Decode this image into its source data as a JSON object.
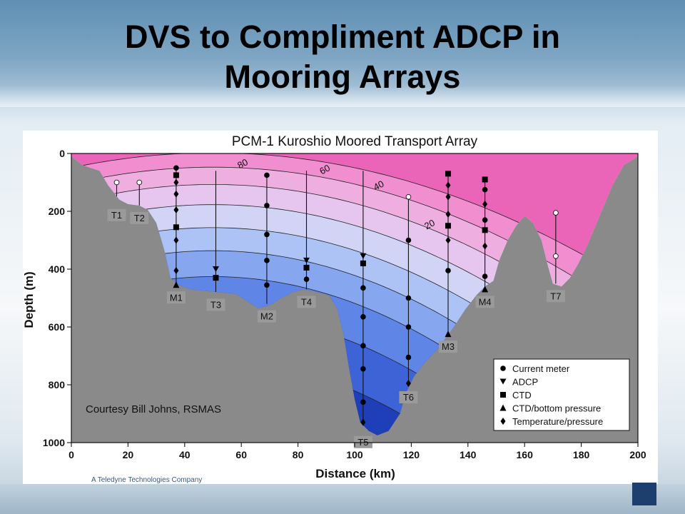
{
  "slide": {
    "title_line1": "DVS to Compliment ADCP in",
    "title_line2": "Mooring Arrays",
    "courtesy": "Courtesy Bill Johns, RSMAS",
    "company_tagline": "A Teledyne Technologies Company"
  },
  "colors": {
    "seafloor": "#8a8a8a",
    "band_fill": [
      "#1f3fb8",
      "#3d63d6",
      "#5f86e6",
      "#86a6ef",
      "#adc3f5",
      "#d2d4f6",
      "#e6c6ee",
      "#efaee0",
      "#f08ed0",
      "#ea64b8"
    ],
    "contour": "#222222"
  },
  "chart_data": {
    "type": "area",
    "title": "PCM-1 Kuroshio Moored Transport Array",
    "xlabel": "Distance (km)",
    "ylabel": "Depth (m)",
    "xlim": [
      0,
      200
    ],
    "ylim": [
      1000,
      0
    ],
    "xticks": [
      0,
      20,
      40,
      60,
      80,
      100,
      120,
      140,
      160,
      180,
      200
    ],
    "yticks": [
      0,
      200,
      400,
      600,
      800,
      1000
    ],
    "contour_labels": [
      {
        "text": "80",
        "x": 61,
        "y": 45
      },
      {
        "text": "60",
        "x": 90,
        "y": 65
      },
      {
        "text": "40",
        "x": 109,
        "y": 120
      },
      {
        "text": "20",
        "x": 127,
        "y": 255
      }
    ],
    "bathymetry": [
      [
        0,
        10
      ],
      [
        4,
        40
      ],
      [
        10,
        60
      ],
      [
        13,
        110
      ],
      [
        17,
        160
      ],
      [
        20,
        175
      ],
      [
        24,
        180
      ],
      [
        27,
        195
      ],
      [
        30,
        240
      ],
      [
        33,
        340
      ],
      [
        35,
        430
      ],
      [
        38,
        455
      ],
      [
        42,
        470
      ],
      [
        47,
        475
      ],
      [
        52,
        480
      ],
      [
        58,
        485
      ],
      [
        62,
        510
      ],
      [
        66,
        535
      ],
      [
        70,
        525
      ],
      [
        74,
        500
      ],
      [
        78,
        480
      ],
      [
        82,
        470
      ],
      [
        87,
        480
      ],
      [
        91,
        490
      ],
      [
        94,
        540
      ],
      [
        96,
        620
      ],
      [
        98,
        740
      ],
      [
        100,
        850
      ],
      [
        102,
        930
      ],
      [
        105,
        960
      ],
      [
        108,
        975
      ],
      [
        112,
        960
      ],
      [
        116,
        900
      ],
      [
        118,
        830
      ],
      [
        121,
        770
      ],
      [
        125,
        720
      ],
      [
        129,
        680
      ],
      [
        132,
        640
      ],
      [
        135,
        600
      ],
      [
        139,
        540
      ],
      [
        143,
        490
      ],
      [
        146,
        460
      ],
      [
        149,
        440
      ],
      [
        151,
        370
      ],
      [
        154,
        300
      ],
      [
        157,
        250
      ],
      [
        160,
        215
      ],
      [
        163,
        240
      ],
      [
        166,
        300
      ],
      [
        168,
        380
      ],
      [
        170,
        450
      ],
      [
        173,
        460
      ],
      [
        176,
        430
      ],
      [
        179,
        380
      ],
      [
        182,
        320
      ],
      [
        185,
        250
      ],
      [
        188,
        180
      ],
      [
        191,
        110
      ],
      [
        195,
        40
      ],
      [
        200,
        10
      ]
    ],
    "moorings": [
      {
        "name": "T1",
        "x": 16,
        "top": 100,
        "bottom": 170,
        "instruments": [
          {
            "type": "current_meter",
            "depth": 100
          }
        ]
      },
      {
        "name": "T2",
        "x": 24,
        "top": 100,
        "bottom": 180,
        "instruments": [
          {
            "type": "current_meter",
            "depth": 100
          }
        ]
      },
      {
        "name": "M1",
        "x": 37,
        "top": 50,
        "bottom": 455,
        "instruments": [
          {
            "type": "current_meter",
            "depth": 50
          },
          {
            "type": "ctd",
            "depth": 75
          },
          {
            "type": "temperature_pressure",
            "depth": 100
          },
          {
            "type": "temperature_pressure",
            "depth": 140
          },
          {
            "type": "temperature_pressure",
            "depth": 195
          },
          {
            "type": "ctd",
            "depth": 255
          },
          {
            "type": "temperature_pressure",
            "depth": 300
          },
          {
            "type": "temperature_pressure",
            "depth": 405
          },
          {
            "type": "ctd_bottom_pressure",
            "depth": 455
          }
        ]
      },
      {
        "name": "T3",
        "x": 51,
        "top": 60,
        "bottom": 480,
        "instruments": [
          {
            "type": "adcp",
            "depth": 400
          },
          {
            "type": "ctd",
            "depth": 430
          }
        ]
      },
      {
        "name": "M2",
        "x": 69,
        "top": 75,
        "bottom": 520,
        "instruments": [
          {
            "type": "current_meter",
            "depth": 75
          },
          {
            "type": "current_meter",
            "depth": 180
          },
          {
            "type": "current_meter",
            "depth": 280
          },
          {
            "type": "current_meter",
            "depth": 370
          },
          {
            "type": "current_meter",
            "depth": 455
          }
        ]
      },
      {
        "name": "T4",
        "x": 83,
        "top": 60,
        "bottom": 470,
        "instruments": [
          {
            "type": "adcp",
            "depth": 370
          },
          {
            "type": "ctd",
            "depth": 395
          },
          {
            "type": "current_meter",
            "depth": 435
          }
        ]
      },
      {
        "name": "T5",
        "x": 103,
        "top": 60,
        "bottom": 955,
        "instruments": [
          {
            "type": "adcp",
            "depth": 355
          },
          {
            "type": "ctd",
            "depth": 380
          },
          {
            "type": "current_meter",
            "depth": 465
          },
          {
            "type": "current_meter",
            "depth": 565
          },
          {
            "type": "current_meter",
            "depth": 665
          },
          {
            "type": "current_meter",
            "depth": 745
          },
          {
            "type": "current_meter",
            "depth": 860
          },
          {
            "type": "temperature_pressure",
            "depth": 930
          }
        ]
      },
      {
        "name": "T6",
        "x": 119,
        "top": 150,
        "bottom": 800,
        "instruments": [
          {
            "type": "current_meter",
            "depth": 150
          },
          {
            "type": "current_meter",
            "depth": 300
          },
          {
            "type": "current_meter",
            "depth": 500
          },
          {
            "type": "current_meter",
            "depth": 600
          },
          {
            "type": "current_meter",
            "depth": 705
          },
          {
            "type": "temperature_pressure",
            "depth": 795
          }
        ]
      },
      {
        "name": "M3",
        "x": 133,
        "top": 70,
        "bottom": 625,
        "instruments": [
          {
            "type": "ctd",
            "depth": 70
          },
          {
            "type": "temperature_pressure",
            "depth": 110
          },
          {
            "type": "temperature_pressure",
            "depth": 150
          },
          {
            "type": "temperature_pressure",
            "depth": 210
          },
          {
            "type": "ctd",
            "depth": 250
          },
          {
            "type": "temperature_pressure",
            "depth": 300
          },
          {
            "type": "current_meter",
            "depth": 405
          },
          {
            "type": "ctd_bottom_pressure",
            "depth": 625
          }
        ]
      },
      {
        "name": "M4",
        "x": 146,
        "top": 90,
        "bottom": 470,
        "instruments": [
          {
            "type": "ctd",
            "depth": 90
          },
          {
            "type": "current_meter",
            "depth": 125
          },
          {
            "type": "temperature_pressure",
            "depth": 175
          },
          {
            "type": "current_meter",
            "depth": 230
          },
          {
            "type": "ctd",
            "depth": 265
          },
          {
            "type": "temperature_pressure",
            "depth": 320
          },
          {
            "type": "current_meter",
            "depth": 425
          },
          {
            "type": "ctd_bottom_pressure",
            "depth": 470
          }
        ]
      },
      {
        "name": "T7",
        "x": 171,
        "top": 205,
        "bottom": 450,
        "instruments": [
          {
            "type": "current_meter",
            "depth": 205
          },
          {
            "type": "current_meter",
            "depth": 355
          }
        ]
      }
    ],
    "legend": {
      "position": "bottom-right",
      "entries": [
        {
          "symbol": "current_meter",
          "label": "Current meter"
        },
        {
          "symbol": "adcp",
          "label": "ADCP"
        },
        {
          "symbol": "ctd",
          "label": "CTD"
        },
        {
          "symbol": "ctd_bottom_pressure",
          "label": "CTD/bottom pressure"
        },
        {
          "symbol": "temperature_pressure",
          "label": "Temperature/pressure"
        }
      ]
    }
  }
}
